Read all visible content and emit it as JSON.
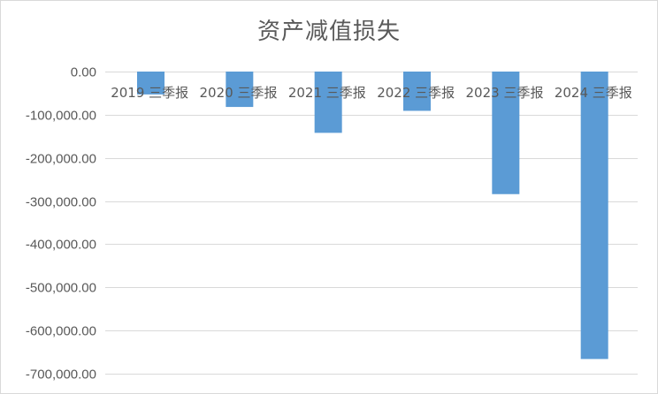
{
  "chart_data": {
    "type": "bar",
    "title": "资产减值损失",
    "categories": [
      "2019 三季报",
      "2020 三季报",
      "2021 三季报",
      "2022 三季报",
      "2023 三季报",
      "2024 三季报"
    ],
    "series": [
      {
        "values": [
          -53000,
          -82000,
          -142000,
          -91000,
          -284000,
          -666000
        ]
      }
    ],
    "ylim": [
      -700000,
      0
    ],
    "yticks": [
      0,
      -100000,
      -200000,
      -300000,
      -400000,
      -500000,
      -600000,
      -700000
    ],
    "ytick_labels": [
      "0.00",
      "-100,000.00",
      "-200,000.00",
      "-300,000.00",
      "-400,000.00",
      "-500,000.00",
      "-600,000.00",
      "-700,000.00"
    ],
    "grid": true,
    "bar_color": "#5b9bd5",
    "grid_color": "#d9d9d9",
    "xlabel": "",
    "ylabel": ""
  }
}
